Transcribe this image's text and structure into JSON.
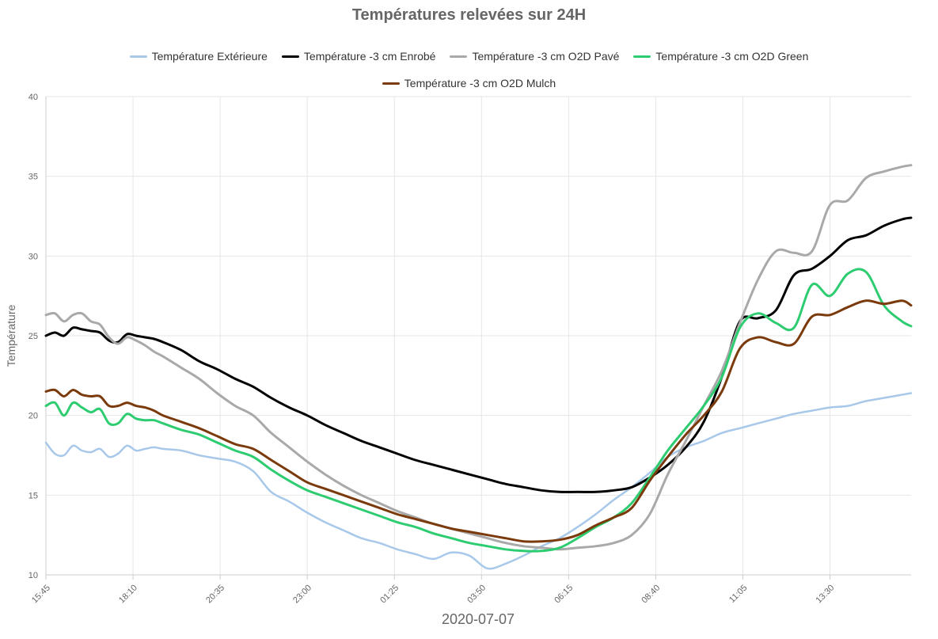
{
  "chart_data": {
    "type": "line",
    "title": "Températures relevées sur 24H",
    "xlabel": "2020-07-07",
    "ylabel": "Température",
    "ylim": [
      10,
      40
    ],
    "yticks": [
      10,
      15,
      20,
      25,
      30,
      35,
      40
    ],
    "xlim": [
      "15:45",
      "15:45"
    ],
    "xticks": [
      "15:45",
      "18:10",
      "20:35",
      "23:00",
      "01:25",
      "03:50",
      "06:15",
      "08:40",
      "11:05",
      "13:30"
    ],
    "grid": true,
    "legend_position": "top",
    "x": [
      "15:45",
      "16:00",
      "16:15",
      "16:30",
      "16:45",
      "17:00",
      "17:15",
      "17:30",
      "17:45",
      "18:00",
      "18:15",
      "18:30",
      "18:45",
      "19:00",
      "19:30",
      "20:00",
      "20:30",
      "21:00",
      "21:30",
      "22:00",
      "22:30",
      "23:00",
      "23:30",
      "00:00",
      "00:30",
      "01:00",
      "01:30",
      "02:00",
      "02:30",
      "03:00",
      "03:30",
      "04:00",
      "04:30",
      "05:00",
      "05:30",
      "06:00",
      "06:30",
      "07:00",
      "07:30",
      "08:00",
      "08:30",
      "09:00",
      "09:30",
      "10:00",
      "10:30",
      "11:00",
      "11:30",
      "12:00",
      "12:30",
      "13:00",
      "13:30",
      "14:00",
      "14:30",
      "15:00",
      "15:30",
      "15:45"
    ],
    "series": [
      {
        "name": "Température Extérieure",
        "color": "#a8c8ea",
        "values": [
          18.3,
          17.6,
          17.5,
          18.1,
          17.8,
          17.7,
          17.9,
          17.4,
          17.6,
          18.1,
          17.8,
          17.9,
          18.0,
          17.9,
          17.8,
          17.5,
          17.3,
          17.1,
          16.5,
          15.2,
          14.6,
          13.9,
          13.3,
          12.8,
          12.3,
          12.0,
          11.6,
          11.3,
          11.0,
          11.4,
          11.2,
          10.4,
          10.7,
          11.2,
          11.8,
          12.3,
          13.0,
          13.8,
          14.7,
          15.5,
          16.4,
          17.4,
          18.0,
          18.4,
          18.9,
          19.2,
          19.5,
          19.8,
          20.1,
          20.3,
          20.5,
          20.6,
          20.9,
          21.1,
          21.3,
          21.4
        ]
      },
      {
        "name": "Température -3 cm Enrobé",
        "color": "#000000",
        "values": [
          25.0,
          25.2,
          25.0,
          25.5,
          25.4,
          25.3,
          25.2,
          24.7,
          24.6,
          25.1,
          25.0,
          24.9,
          24.8,
          24.6,
          24.1,
          23.4,
          22.9,
          22.3,
          21.8,
          21.1,
          20.5,
          20.0,
          19.4,
          18.9,
          18.4,
          18.0,
          17.6,
          17.2,
          16.9,
          16.6,
          16.3,
          16.0,
          15.7,
          15.5,
          15.3,
          15.2,
          15.2,
          15.2,
          15.3,
          15.5,
          16.1,
          16.9,
          18.0,
          19.6,
          22.4,
          25.9,
          26.1,
          26.6,
          28.8,
          29.2,
          30.0,
          31.0,
          31.3,
          31.9,
          32.3,
          32.4
        ]
      },
      {
        "name": "Température -3 cm O2D Pavé",
        "color": "#a9a9a9",
        "values": [
          26.3,
          26.4,
          25.9,
          26.3,
          26.4,
          25.9,
          25.7,
          24.9,
          24.5,
          24.9,
          24.7,
          24.4,
          24.0,
          23.7,
          23.0,
          22.3,
          21.4,
          20.6,
          20.0,
          18.9,
          18.0,
          17.1,
          16.3,
          15.6,
          15.0,
          14.5,
          14.0,
          13.6,
          13.2,
          12.9,
          12.6,
          12.3,
          12.0,
          11.8,
          11.7,
          11.6,
          11.7,
          11.8,
          12.0,
          12.5,
          13.8,
          16.3,
          18.4,
          20.6,
          22.8,
          25.8,
          28.5,
          30.3,
          30.2,
          30.3,
          33.2,
          33.5,
          34.9,
          35.3,
          35.6,
          35.7
        ]
      },
      {
        "name": "Température -3 cm O2D Green",
        "color": "#2ecc71",
        "values": [
          20.6,
          20.8,
          20.0,
          20.8,
          20.5,
          20.2,
          20.4,
          19.5,
          19.5,
          20.1,
          19.8,
          19.7,
          19.7,
          19.5,
          19.1,
          18.8,
          18.3,
          17.8,
          17.4,
          16.6,
          15.9,
          15.3,
          14.9,
          14.5,
          14.1,
          13.7,
          13.3,
          13.0,
          12.6,
          12.3,
          12.0,
          11.8,
          11.6,
          11.5,
          11.5,
          11.7,
          12.3,
          13.0,
          13.6,
          14.5,
          16.1,
          17.8,
          19.2,
          20.6,
          22.4,
          25.5,
          26.4,
          25.8,
          25.5,
          28.2,
          27.5,
          28.9,
          29.0,
          26.9,
          25.9,
          25.6
        ]
      },
      {
        "name": "Température -3 cm O2D Mulch",
        "color": "#7a3a0c",
        "values": [
          21.5,
          21.6,
          21.2,
          21.6,
          21.3,
          21.2,
          21.2,
          20.6,
          20.6,
          20.8,
          20.6,
          20.5,
          20.3,
          20.0,
          19.6,
          19.2,
          18.7,
          18.2,
          17.9,
          17.2,
          16.5,
          15.8,
          15.4,
          15.0,
          14.6,
          14.2,
          13.8,
          13.5,
          13.2,
          12.9,
          12.7,
          12.5,
          12.3,
          12.1,
          12.1,
          12.2,
          12.5,
          13.1,
          13.6,
          14.2,
          15.9,
          17.4,
          18.8,
          20.0,
          21.5,
          24.2,
          24.9,
          24.6,
          24.5,
          26.2,
          26.3,
          26.8,
          27.2,
          27.0,
          27.2,
          26.9
        ]
      }
    ]
  }
}
